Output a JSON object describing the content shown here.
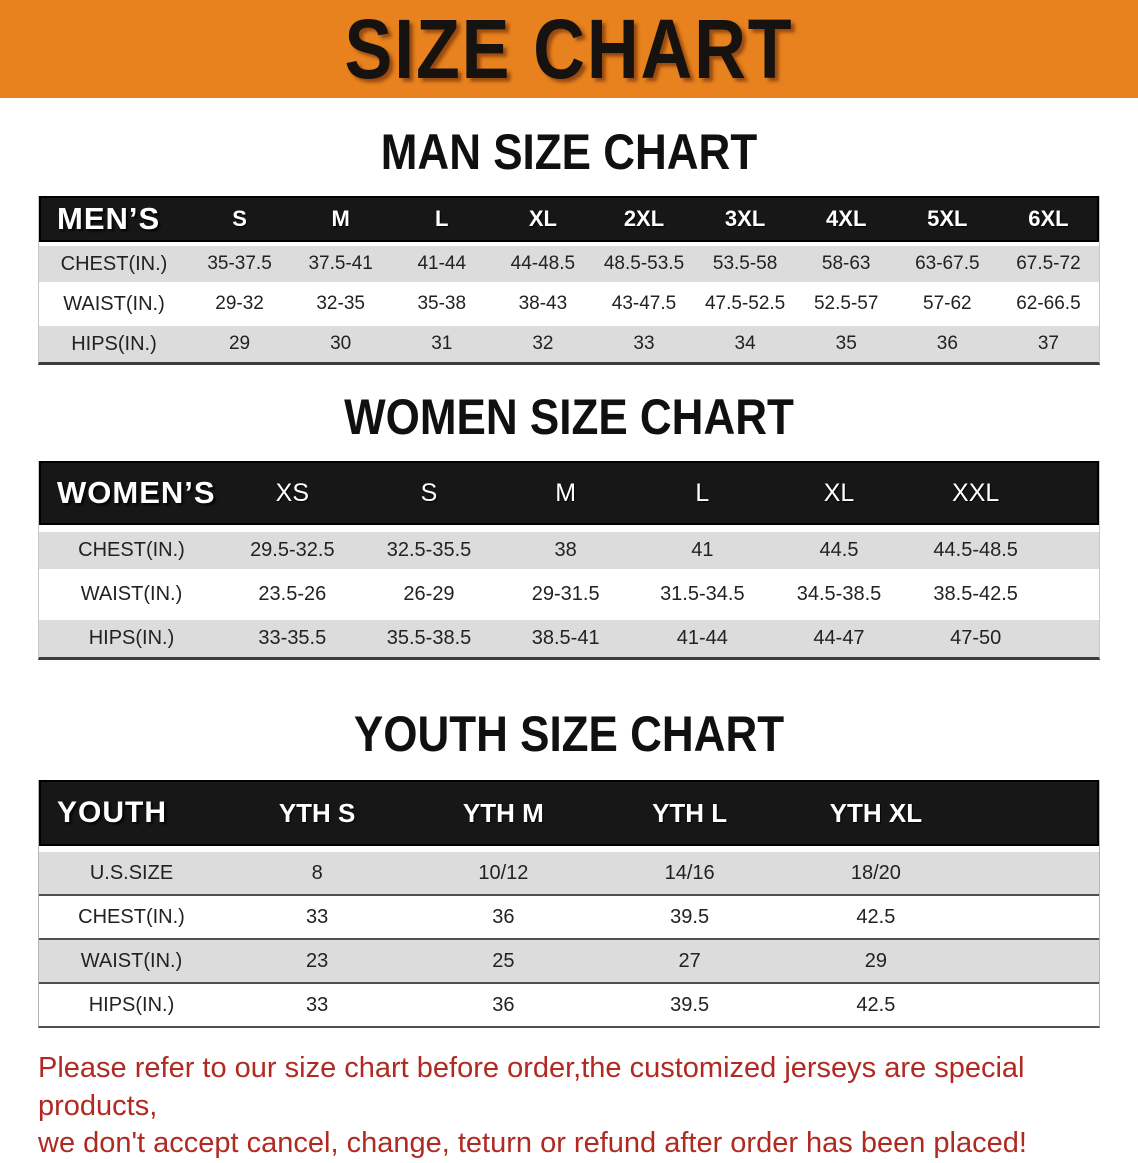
{
  "banner": {
    "title": "SIZE CHART"
  },
  "colors": {
    "banner_bg": "#E8821E",
    "header_bg": "#171717",
    "row_shade": "#DCDCDC",
    "disclaimer_red": "#B02A22"
  },
  "sections": [
    {
      "heading": "MAN SIZE CHART",
      "table": {
        "corner_label": "MEN’S",
        "columns": [
          "S",
          "M",
          "L",
          "XL",
          "2XL",
          "3XL",
          "4XL",
          "5XL",
          "6XL"
        ],
        "rows": [
          {
            "label": "CHEST(IN.)",
            "values": [
              "35-37.5",
              "37.5-41",
              "41-44",
              "44-48.5",
              "48.5-53.5",
              "53.5-58",
              "58-63",
              "63-67.5",
              "67.5-72"
            ]
          },
          {
            "label": "WAIST(IN.)",
            "values": [
              "29-32",
              "32-35",
              "35-38",
              "38-43",
              "43-47.5",
              "47.5-52.5",
              "52.5-57",
              "57-62",
              "62-66.5"
            ]
          },
          {
            "label": "HIPS(IN.)",
            "values": [
              "29",
              "30",
              "31",
              "32",
              "33",
              "34",
              "35",
              "36",
              "37"
            ]
          }
        ]
      }
    },
    {
      "heading": "WOMEN SIZE CHART",
      "table": {
        "corner_label": "WOMEN’S",
        "columns": [
          "XS",
          "S",
          "M",
          "L",
          "XL",
          "XXL"
        ],
        "rows": [
          {
            "label": "CHEST(IN.)",
            "values": [
              "29.5-32.5",
              "32.5-35.5",
              "38",
              "41",
              "44.5",
              "44.5-48.5"
            ]
          },
          {
            "label": "WAIST(IN.)",
            "values": [
              "23.5-26",
              "26-29",
              "29-31.5",
              "31.5-34.5",
              "34.5-38.5",
              "38.5-42.5"
            ]
          },
          {
            "label": "HIPS(IN.)",
            "values": [
              "33-35.5",
              "35.5-38.5",
              "38.5-41",
              "41-44",
              "44-47",
              "47-50"
            ]
          }
        ]
      }
    },
    {
      "heading": "YOUTH SIZE CHART",
      "table": {
        "corner_label": "YOUTH",
        "columns": [
          "YTH S",
          "YTH M",
          "YTH L",
          "YTH XL"
        ],
        "rows": [
          {
            "label": "U.S.SIZE",
            "values": [
              "8",
              "10/12",
              "14/16",
              "18/20"
            ]
          },
          {
            "label": "CHEST(IN.)",
            "values": [
              "33",
              "36",
              "39.5",
              "42.5"
            ]
          },
          {
            "label": "WAIST(IN.)",
            "values": [
              "23",
              "25",
              "27",
              "29"
            ]
          },
          {
            "label": "HIPS(IN.)",
            "values": [
              "33",
              "36",
              "39.5",
              "42.5"
            ]
          }
        ]
      }
    }
  ],
  "disclaimer": {
    "line1": "Please refer to our size chart before order,the customized jerseys are special products,",
    "line2": "we don't accept cancel, change, teturn or refund after order has been placed!"
  }
}
